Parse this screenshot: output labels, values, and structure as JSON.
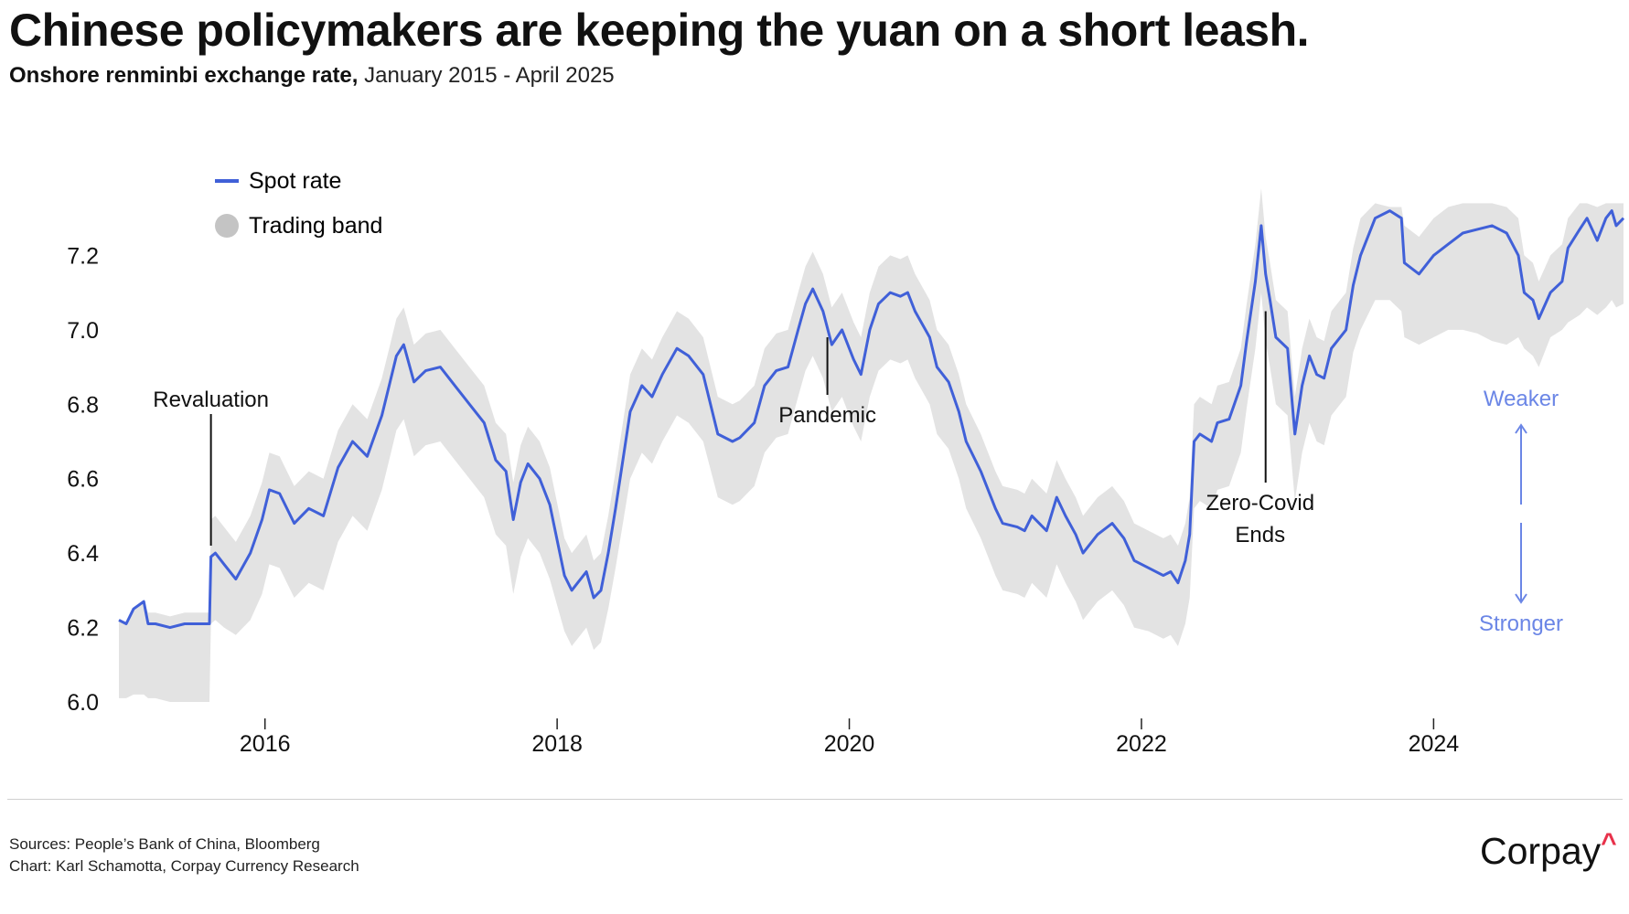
{
  "header": {
    "title": "Chinese policymakers are keeping the yuan on a short leash.",
    "subtitle_bold": "Onshore renminbi exchange rate,",
    "subtitle_rest": "January 2015 - April 2025"
  },
  "footer": {
    "source_line": "Sources: People’s Bank of China, Bloomberg",
    "chart_line": "Chart: Karl Schamotta, Corpay Currency Research",
    "logo_text": "Corpay",
    "logo_mark": "^"
  },
  "colors": {
    "spot": "#4060d8",
    "band": "#e3e3e3",
    "legend_band_dot": "#c4c4c4",
    "direction": "#6b86e6",
    "logo_accent": "#e8314a"
  },
  "chart_data": {
    "type": "line",
    "xlim": [
      2015.0,
      2025.3
    ],
    "ylim": [
      6.0,
      7.4
    ],
    "y_ticks": [
      "6.0",
      "6.2",
      "6.4",
      "6.6",
      "6.8",
      "7.0",
      "7.2"
    ],
    "x_ticks": [
      "2016",
      "2018",
      "2020",
      "2022",
      "2024"
    ],
    "grid": false,
    "legend_placement": "top-left",
    "legend": [
      {
        "label": "Spot rate",
        "marker": "line"
      },
      {
        "label": "Trading band",
        "marker": "dot"
      }
    ],
    "series": [
      {
        "name": "Spot rate",
        "x": [
          2015.0,
          2015.05,
          2015.1,
          2015.17,
          2015.2,
          2015.25,
          2015.35,
          2015.45,
          2015.55,
          2015.62,
          2015.63,
          2015.66,
          2015.72,
          2015.8,
          2015.9,
          2015.98,
          2016.03,
          2016.1,
          2016.2,
          2016.3,
          2016.4,
          2016.5,
          2016.6,
          2016.7,
          2016.8,
          2016.85,
          2016.9,
          2016.95,
          2017.02,
          2017.1,
          2017.2,
          2017.3,
          2017.4,
          2017.5,
          2017.58,
          2017.65,
          2017.7,
          2017.75,
          2017.8,
          2017.88,
          2017.95,
          2018.05,
          2018.1,
          2018.2,
          2018.25,
          2018.3,
          2018.35,
          2018.4,
          2018.45,
          2018.5,
          2018.58,
          2018.65,
          2018.72,
          2018.82,
          2018.9,
          2019.0,
          2019.1,
          2019.2,
          2019.25,
          2019.35,
          2019.42,
          2019.5,
          2019.58,
          2019.65,
          2019.7,
          2019.75,
          2019.82,
          2019.88,
          2019.95,
          2020.03,
          2020.08,
          2020.14,
          2020.2,
          2020.28,
          2020.35,
          2020.4,
          2020.45,
          2020.55,
          2020.6,
          2020.68,
          2020.75,
          2020.8,
          2020.9,
          2021.0,
          2021.05,
          2021.15,
          2021.2,
          2021.25,
          2021.35,
          2021.42,
          2021.48,
          2021.55,
          2021.6,
          2021.7,
          2021.8,
          2021.88,
          2021.95,
          2022.05,
          2022.15,
          2022.2,
          2022.25,
          2022.3,
          2022.33,
          2022.36,
          2022.4,
          2022.48,
          2022.52,
          2022.6,
          2022.68,
          2022.72,
          2022.78,
          2022.82,
          2022.85,
          2022.88,
          2022.92,
          2023.0,
          2023.05,
          2023.1,
          2023.15,
          2023.2,
          2023.25,
          2023.3,
          2023.4,
          2023.45,
          2023.5,
          2023.6,
          2023.7,
          2023.78,
          2023.8,
          2023.9,
          2024.0,
          2024.1,
          2024.2,
          2024.3,
          2024.4,
          2024.5,
          2024.58,
          2024.62,
          2024.68,
          2024.72,
          2024.8,
          2024.88,
          2024.92,
          2025.0,
          2025.05,
          2025.12,
          2025.18,
          2025.22,
          2025.25,
          2025.3
        ],
        "y": [
          6.22,
          6.21,
          6.25,
          6.27,
          6.21,
          6.21,
          6.2,
          6.21,
          6.21,
          6.21,
          6.39,
          6.4,
          6.37,
          6.33,
          6.4,
          6.49,
          6.57,
          6.56,
          6.48,
          6.52,
          6.5,
          6.63,
          6.7,
          6.66,
          6.77,
          6.85,
          6.93,
          6.96,
          6.86,
          6.89,
          6.9,
          6.85,
          6.8,
          6.75,
          6.65,
          6.62,
          6.49,
          6.59,
          6.64,
          6.6,
          6.53,
          6.34,
          6.3,
          6.35,
          6.28,
          6.3,
          6.4,
          6.52,
          6.65,
          6.78,
          6.85,
          6.82,
          6.88,
          6.95,
          6.93,
          6.88,
          6.72,
          6.7,
          6.71,
          6.75,
          6.85,
          6.89,
          6.9,
          7.0,
          7.07,
          7.11,
          7.05,
          6.96,
          7.0,
          6.92,
          6.88,
          7.0,
          7.07,
          7.1,
          7.09,
          7.1,
          7.05,
          6.98,
          6.9,
          6.86,
          6.78,
          6.7,
          6.62,
          6.52,
          6.48,
          6.47,
          6.46,
          6.5,
          6.46,
          6.55,
          6.5,
          6.45,
          6.4,
          6.45,
          6.48,
          6.44,
          6.38,
          6.36,
          6.34,
          6.35,
          6.32,
          6.38,
          6.45,
          6.7,
          6.72,
          6.7,
          6.75,
          6.76,
          6.85,
          6.97,
          7.13,
          7.28,
          7.15,
          7.08,
          6.98,
          6.95,
          6.72,
          6.85,
          6.93,
          6.88,
          6.87,
          6.95,
          7.0,
          7.12,
          7.2,
          7.3,
          7.32,
          7.3,
          7.18,
          7.15,
          7.2,
          7.23,
          7.26,
          7.27,
          7.28,
          7.26,
          7.2,
          7.1,
          7.08,
          7.03,
          7.1,
          7.13,
          7.22,
          7.27,
          7.3,
          7.24,
          7.3,
          7.32,
          7.28,
          7.3
        ]
      },
      {
        "name": "Trading band",
        "x": [
          2015.0,
          2015.05,
          2015.1,
          2015.17,
          2015.2,
          2015.25,
          2015.35,
          2015.45,
          2015.55,
          2015.62,
          2015.63,
          2015.66,
          2015.72,
          2015.8,
          2015.9,
          2015.98,
          2016.03,
          2016.1,
          2016.2,
          2016.3,
          2016.4,
          2016.5,
          2016.6,
          2016.7,
          2016.8,
          2016.85,
          2016.9,
          2016.95,
          2017.02,
          2017.1,
          2017.2,
          2017.3,
          2017.4,
          2017.5,
          2017.58,
          2017.65,
          2017.7,
          2017.75,
          2017.8,
          2017.88,
          2017.95,
          2018.05,
          2018.1,
          2018.2,
          2018.25,
          2018.3,
          2018.35,
          2018.4,
          2018.45,
          2018.5,
          2018.58,
          2018.65,
          2018.72,
          2018.82,
          2018.9,
          2019.0,
          2019.1,
          2019.2,
          2019.25,
          2019.35,
          2019.42,
          2019.5,
          2019.58,
          2019.65,
          2019.7,
          2019.75,
          2019.82,
          2019.88,
          2019.95,
          2020.03,
          2020.08,
          2020.14,
          2020.2,
          2020.28,
          2020.35,
          2020.4,
          2020.45,
          2020.55,
          2020.6,
          2020.68,
          2020.75,
          2020.8,
          2020.9,
          2021.0,
          2021.05,
          2021.15,
          2021.2,
          2021.25,
          2021.35,
          2021.42,
          2021.48,
          2021.55,
          2021.6,
          2021.7,
          2021.8,
          2021.88,
          2021.95,
          2022.05,
          2022.15,
          2022.2,
          2022.25,
          2022.3,
          2022.33,
          2022.36,
          2022.4,
          2022.48,
          2022.52,
          2022.6,
          2022.68,
          2022.72,
          2022.78,
          2022.82,
          2022.85,
          2022.88,
          2022.92,
          2023.0,
          2023.05,
          2023.1,
          2023.15,
          2023.2,
          2023.25,
          2023.3,
          2023.4,
          2023.45,
          2023.5,
          2023.6,
          2023.7,
          2023.78,
          2023.8,
          2023.9,
          2024.0,
          2024.1,
          2024.2,
          2024.3,
          2024.4,
          2024.5,
          2024.58,
          2024.62,
          2024.68,
          2024.72,
          2024.8,
          2024.88,
          2024.92,
          2025.0,
          2025.05,
          2025.12,
          2025.18,
          2025.22,
          2025.25,
          2025.3
        ],
        "upper": [
          6.22,
          6.21,
          6.25,
          6.27,
          6.24,
          6.24,
          6.23,
          6.24,
          6.24,
          6.24,
          6.49,
          6.5,
          6.47,
          6.43,
          6.5,
          6.59,
          6.67,
          6.66,
          6.58,
          6.62,
          6.6,
          6.73,
          6.8,
          6.76,
          6.87,
          6.95,
          7.03,
          7.06,
          6.96,
          6.99,
          7.0,
          6.95,
          6.9,
          6.85,
          6.75,
          6.72,
          6.59,
          6.69,
          6.74,
          6.7,
          6.63,
          6.44,
          6.4,
          6.45,
          6.38,
          6.4,
          6.5,
          6.62,
          6.75,
          6.88,
          6.95,
          6.92,
          6.98,
          7.05,
          7.03,
          6.98,
          6.82,
          6.8,
          6.81,
          6.85,
          6.95,
          6.99,
          7.0,
          7.1,
          7.17,
          7.21,
          7.15,
          7.06,
          7.1,
          7.02,
          6.98,
          7.1,
          7.17,
          7.2,
          7.19,
          7.2,
          7.15,
          7.08,
          7.0,
          6.96,
          6.88,
          6.8,
          6.72,
          6.62,
          6.58,
          6.57,
          6.56,
          6.6,
          6.56,
          6.65,
          6.6,
          6.55,
          6.5,
          6.55,
          6.58,
          6.54,
          6.48,
          6.46,
          6.44,
          6.45,
          6.42,
          6.48,
          6.55,
          6.8,
          6.82,
          6.8,
          6.85,
          6.86,
          6.95,
          7.07,
          7.23,
          7.38,
          7.25,
          7.18,
          7.08,
          7.05,
          6.82,
          6.95,
          7.03,
          6.98,
          6.97,
          7.05,
          7.1,
          7.22,
          7.3,
          7.34,
          7.33,
          7.33,
          7.28,
          7.25,
          7.3,
          7.33,
          7.34,
          7.34,
          7.34,
          7.33,
          7.3,
          7.2,
          7.18,
          7.13,
          7.2,
          7.23,
          7.3,
          7.34,
          7.34,
          7.33,
          7.34,
          7.34,
          7.34,
          7.34
        ],
        "lower": [
          6.01,
          6.01,
          6.02,
          6.02,
          6.01,
          6.01,
          6.0,
          6.0,
          6.0,
          6.0,
          6.21,
          6.22,
          6.2,
          6.18,
          6.22,
          6.29,
          6.37,
          6.36,
          6.28,
          6.32,
          6.3,
          6.43,
          6.5,
          6.46,
          6.57,
          6.65,
          6.73,
          6.76,
          6.66,
          6.69,
          6.7,
          6.65,
          6.6,
          6.55,
          6.45,
          6.42,
          6.29,
          6.39,
          6.44,
          6.4,
          6.33,
          6.19,
          6.15,
          6.2,
          6.14,
          6.16,
          6.25,
          6.36,
          6.48,
          6.6,
          6.67,
          6.64,
          6.7,
          6.77,
          6.75,
          6.7,
          6.55,
          6.53,
          6.54,
          6.58,
          6.67,
          6.71,
          6.72,
          6.82,
          6.89,
          6.93,
          6.87,
          6.78,
          6.82,
          6.74,
          6.7,
          6.82,
          6.89,
          6.92,
          6.91,
          6.92,
          6.87,
          6.8,
          6.72,
          6.68,
          6.6,
          6.52,
          6.44,
          6.34,
          6.3,
          6.29,
          6.28,
          6.32,
          6.28,
          6.37,
          6.32,
          6.27,
          6.22,
          6.27,
          6.3,
          6.26,
          6.2,
          6.19,
          6.17,
          6.18,
          6.15,
          6.21,
          6.28,
          6.52,
          6.54,
          6.52,
          6.57,
          6.58,
          6.67,
          6.79,
          6.95,
          7.1,
          6.97,
          6.9,
          6.8,
          6.77,
          6.54,
          6.67,
          6.75,
          6.7,
          6.69,
          6.77,
          6.82,
          6.94,
          7.0,
          7.08,
          7.08,
          7.05,
          6.98,
          6.96,
          6.98,
          7.0,
          7.0,
          6.99,
          6.97,
          6.96,
          6.98,
          6.95,
          6.93,
          6.9,
          6.98,
          7.0,
          7.02,
          7.04,
          7.06,
          7.04,
          7.06,
          7.08,
          7.06,
          7.07
        ]
      }
    ],
    "annotations": [
      {
        "label": "Revaluation",
        "x": 2015.63,
        "y": 6.42,
        "label_position": "top"
      },
      {
        "label": "Pandemic",
        "x": 2019.85,
        "y": 6.98,
        "label_position": "bottom"
      },
      {
        "label_lines": [
          "Zero-Covid",
          "Ends"
        ],
        "x": 2022.85,
        "y": 7.05,
        "label_position": "bottom"
      }
    ],
    "direction_labels": {
      "up": "Weaker",
      "down": "Stronger"
    }
  }
}
